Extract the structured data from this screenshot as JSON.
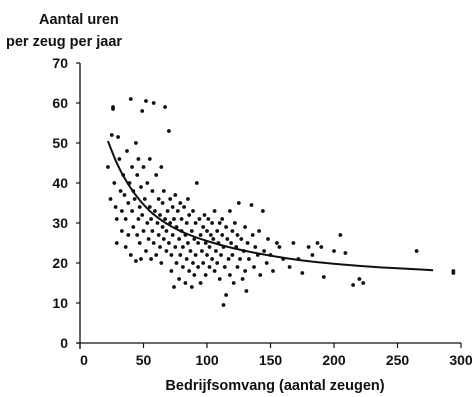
{
  "chart_data": {
    "type": "scatter",
    "title": "",
    "ylabel_line1": "Aantal  uren",
    "ylabel_line2": "per zeug per jaar",
    "xlabel": "Bedrijfsomvang (aantal zeugen)",
    "xlim": [
      0,
      300
    ],
    "ylim": [
      0,
      70
    ],
    "x_ticks": [
      0,
      50,
      100,
      150,
      200,
      250,
      300
    ],
    "x_tick_labels": [
      "0",
      "50",
      "100",
      "150",
      "200",
      "250",
      "300"
    ],
    "y_ticks": [
      0,
      10,
      20,
      30,
      40,
      50,
      60,
      70
    ],
    "y_tick_labels": [
      "0",
      "10",
      "20",
      "30",
      "40",
      "50",
      "60",
      "70"
    ],
    "grid": false,
    "legend": "none",
    "trend_line": {
      "type": "curve",
      "points": [
        [
          22,
          50.5
        ],
        [
          30,
          44
        ],
        [
          40,
          38.5
        ],
        [
          50,
          34.5
        ],
        [
          60,
          31.5
        ],
        [
          75,
          28.5
        ],
        [
          90,
          26.5
        ],
        [
          110,
          24.5
        ],
        [
          130,
          23
        ],
        [
          150,
          21.8
        ],
        [
          175,
          20.6
        ],
        [
          200,
          19.8
        ],
        [
          230,
          19.0
        ],
        [
          255,
          18.6
        ],
        [
          278,
          18.2
        ]
      ]
    },
    "points": [
      [
        22,
        44
      ],
      [
        24,
        36
      ],
      [
        25,
        52
      ],
      [
        26,
        59
      ],
      [
        26,
        58.5
      ],
      [
        27,
        40
      ],
      [
        28,
        34
      ],
      [
        29,
        31
      ],
      [
        29,
        25
      ],
      [
        30,
        51.5
      ],
      [
        31,
        46
      ],
      [
        32,
        38
      ],
      [
        33,
        33
      ],
      [
        33,
        28
      ],
      [
        34,
        42
      ],
      [
        35,
        37
      ],
      [
        36,
        24
      ],
      [
        36,
        31
      ],
      [
        37,
        48
      ],
      [
        38,
        35
      ],
      [
        38,
        27
      ],
      [
        39,
        40
      ],
      [
        40,
        61
      ],
      [
        40,
        22
      ],
      [
        41,
        33
      ],
      [
        41,
        44
      ],
      [
        42,
        29
      ],
      [
        42,
        38
      ],
      [
        43,
        36
      ],
      [
        44,
        50
      ],
      [
        44,
        20.5
      ],
      [
        45,
        27
      ],
      [
        45,
        42
      ],
      [
        46,
        31
      ],
      [
        46,
        46
      ],
      [
        47,
        34
      ],
      [
        47,
        25
      ],
      [
        48,
        39
      ],
      [
        48,
        21
      ],
      [
        49,
        58
      ],
      [
        49,
        32
      ],
      [
        50,
        28
      ],
      [
        50,
        44
      ],
      [
        51,
        36
      ],
      [
        52,
        23
      ],
      [
        52,
        60.5
      ],
      [
        53,
        30
      ],
      [
        53,
        40
      ],
      [
        54,
        26
      ],
      [
        55,
        34
      ],
      [
        55,
        46
      ],
      [
        56,
        21
      ],
      [
        56,
        31
      ],
      [
        57,
        38
      ],
      [
        57,
        28
      ],
      [
        58,
        25
      ],
      [
        58,
        60
      ],
      [
        59,
        33
      ],
      [
        60,
        42
      ],
      [
        60,
        22
      ],
      [
        61,
        30
      ],
      [
        62,
        27
      ],
      [
        62,
        36
      ],
      [
        63,
        24
      ],
      [
        63,
        32
      ],
      [
        64,
        44
      ],
      [
        64,
        20
      ],
      [
        65,
        29
      ],
      [
        65,
        35
      ],
      [
        66,
        26
      ],
      [
        66,
        38
      ],
      [
        67,
        31
      ],
      [
        67,
        59
      ],
      [
        68,
        23
      ],
      [
        68,
        28
      ],
      [
        69,
        33
      ],
      [
        70,
        53
      ],
      [
        70,
        25
      ],
      [
        71,
        36
      ],
      [
        71,
        30
      ],
      [
        72,
        18
      ],
      [
        72,
        22
      ],
      [
        73,
        34
      ],
      [
        73,
        27
      ],
      [
        74,
        14
      ],
      [
        74,
        31
      ],
      [
        75,
        24
      ],
      [
        75,
        37
      ],
      [
        76,
        20
      ],
      [
        76,
        29
      ],
      [
        77,
        33
      ],
      [
        78,
        16
      ],
      [
        78,
        26
      ],
      [
        79,
        35
      ],
      [
        79,
        22
      ],
      [
        80,
        31
      ],
      [
        80,
        28
      ],
      [
        81,
        19
      ],
      [
        81,
        24
      ],
      [
        82,
        34
      ],
      [
        83,
        27
      ],
      [
        83,
        15
      ],
      [
        84,
        30
      ],
      [
        84,
        21
      ],
      [
        85,
        36
      ],
      [
        85,
        25
      ],
      [
        86,
        18
      ],
      [
        86,
        32
      ],
      [
        87,
        23
      ],
      [
        88,
        28
      ],
      [
        88,
        14
      ],
      [
        89,
        20
      ],
      [
        89,
        33
      ],
      [
        90,
        26
      ],
      [
        90,
        17
      ],
      [
        91,
        30
      ],
      [
        91,
        22
      ],
      [
        92,
        40
      ],
      [
        93,
        25
      ],
      [
        93,
        19
      ],
      [
        94,
        31
      ],
      [
        95,
        27
      ],
      [
        95,
        15
      ],
      [
        96,
        23
      ],
      [
        97,
        29
      ],
      [
        97,
        20
      ],
      [
        98,
        32
      ],
      [
        99,
        25
      ],
      [
        99,
        17
      ],
      [
        100,
        28
      ],
      [
        100,
        22
      ],
      [
        101,
        31
      ],
      [
        102,
        24
      ],
      [
        102,
        19
      ],
      [
        103,
        27
      ],
      [
        104,
        21
      ],
      [
        104,
        30
      ],
      [
        105,
        26
      ],
      [
        106,
        33
      ],
      [
        106,
        18
      ],
      [
        107,
        23
      ],
      [
        108,
        28
      ],
      [
        108,
        20
      ],
      [
        109,
        25
      ],
      [
        110,
        30
      ],
      [
        110,
        16
      ],
      [
        111,
        22
      ],
      [
        112,
        27
      ],
      [
        112,
        31
      ],
      [
        113,
        9.5
      ],
      [
        113,
        24
      ],
      [
        114,
        19
      ],
      [
        115,
        29
      ],
      [
        115,
        12
      ],
      [
        116,
        26
      ],
      [
        117,
        21
      ],
      [
        118,
        33
      ],
      [
        118,
        17
      ],
      [
        119,
        25
      ],
      [
        120,
        28
      ],
      [
        120,
        22
      ],
      [
        121,
        15
      ],
      [
        122,
        30
      ],
      [
        123,
        24
      ],
      [
        124,
        19
      ],
      [
        124,
        27
      ],
      [
        125,
        35
      ],
      [
        126,
        21
      ],
      [
        127,
        26
      ],
      [
        128,
        16
      ],
      [
        129,
        23
      ],
      [
        130,
        29
      ],
      [
        130,
        18
      ],
      [
        131,
        13
      ],
      [
        132,
        25
      ],
      [
        133,
        21
      ],
      [
        135,
        34.5
      ],
      [
        136,
        27
      ],
      [
        137,
        19
      ],
      [
        138,
        24
      ],
      [
        140,
        22
      ],
      [
        141,
        28
      ],
      [
        142,
        17
      ],
      [
        144,
        33
      ],
      [
        145,
        23
      ],
      [
        147,
        20
      ],
      [
        148,
        26
      ],
      [
        150,
        22
      ],
      [
        152,
        18
      ],
      [
        155,
        25
      ],
      [
        157,
        24
      ],
      [
        160,
        21
      ],
      [
        165,
        19
      ],
      [
        168,
        25
      ],
      [
        172,
        21
      ],
      [
        175,
        17.5
      ],
      [
        180,
        24
      ],
      [
        183,
        22
      ],
      [
        187,
        25
      ],
      [
        190,
        24
      ],
      [
        192,
        16.5
      ],
      [
        200,
        23
      ],
      [
        205,
        27
      ],
      [
        209,
        22.5
      ],
      [
        215,
        14.5
      ],
      [
        220,
        16
      ],
      [
        223,
        15
      ],
      [
        265,
        23
      ],
      [
        294,
        18
      ],
      [
        294,
        17.5
      ]
    ]
  }
}
